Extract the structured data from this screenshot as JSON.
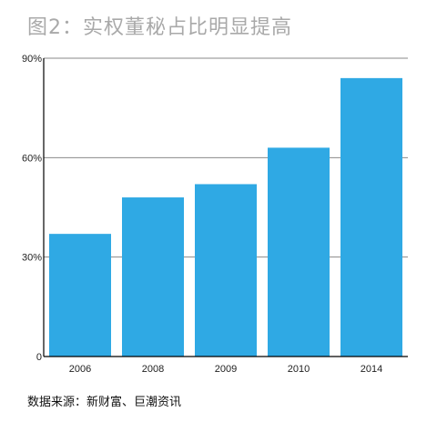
{
  "chart_data": {
    "type": "bar",
    "title": "图2：实权董秘占比明显提高",
    "categories": [
      "2006",
      "2008",
      "2009",
      "2010",
      "2014"
    ],
    "values": [
      37,
      48,
      52,
      63,
      84
    ],
    "ylim": [
      0,
      90
    ],
    "yticks": [
      0,
      30,
      60,
      90
    ],
    "ytick_labels": [
      "0",
      "30%",
      "60%",
      "90%"
    ],
    "xlabel": "",
    "ylabel": "",
    "grid": true,
    "bar_color": "#2fa9e4",
    "grid_color": "#8a8a8a",
    "source": "数据来源：新财富、巨潮资讯"
  }
}
